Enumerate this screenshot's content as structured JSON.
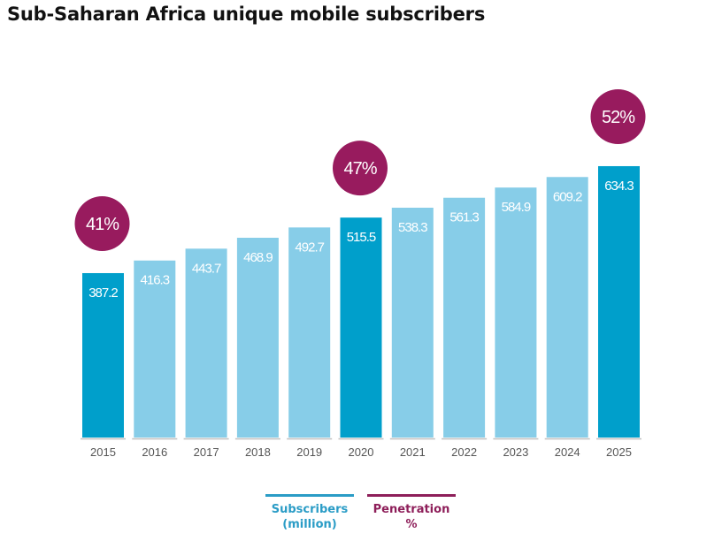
{
  "chart_data": {
    "type": "bar",
    "title": "Sub-Saharan Africa unique mobile subscribers",
    "xlabel": "",
    "ylabel": "",
    "categories": [
      "2015",
      "2016",
      "2017",
      "2018",
      "2019",
      "2020",
      "2021",
      "2022",
      "2023",
      "2024",
      "2025"
    ],
    "series": [
      {
        "name": "Subscribers (million)",
        "values": [
          387.2,
          416.3,
          443.7,
          468.9,
          492.7,
          515.5,
          538.3,
          561.3,
          584.9,
          609.2,
          634.3
        ],
        "labels": [
          "387.2",
          "416.3",
          "443.7",
          "468.9",
          "492.7",
          "515.5",
          "538.3",
          "561.3",
          "584.9",
          "609.2",
          "634.3"
        ]
      },
      {
        "name": "Penetration %",
        "points": [
          {
            "category": "2015",
            "value": 41,
            "label": "41%"
          },
          {
            "category": "2020",
            "value": 47,
            "label": "47%"
          },
          {
            "category": "2025",
            "value": 52,
            "label": "52%"
          }
        ]
      }
    ],
    "highlighted_categories": [
      "2015",
      "2020",
      "2025"
    ],
    "ylim": [
      0,
      640
    ],
    "grid": false,
    "legend_position": "bottom",
    "colors": {
      "bar_highlight": "#009fcb",
      "bar_normal": "#87cde8",
      "penetration": "#981b5e",
      "legend_subscribers": "#2a9cc6",
      "legend_penetration": "#8e1f5a",
      "baseline": "#bfbfbf"
    }
  },
  "legend": {
    "subscribers_line1": "Subscribers",
    "subscribers_line2": "(million)",
    "penetration_line1": "Penetration",
    "penetration_line2": "%"
  }
}
